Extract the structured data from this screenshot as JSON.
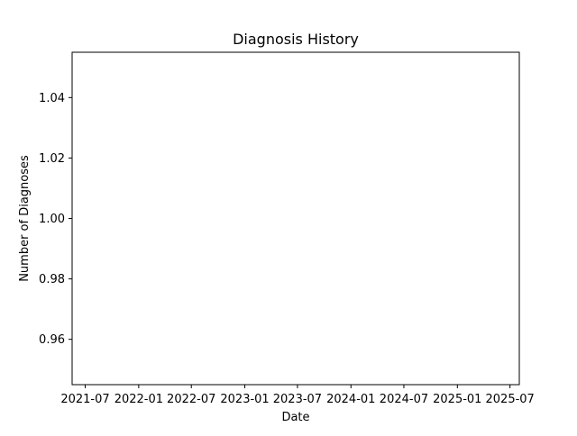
{
  "chart_data": {
    "type": "line",
    "title": "Diagnosis History",
    "xlabel": "Date",
    "ylabel": "Number of Diagnoses",
    "x_tick_labels": [
      "2021-07",
      "2022-01",
      "2022-07",
      "2023-01",
      "2023-07",
      "2024-01",
      "2024-07",
      "2025-01",
      "2025-07"
    ],
    "y_tick_labels": [
      "0.96",
      "0.98",
      "1.00",
      "1.02",
      "1.04"
    ],
    "y_ticks": [
      0.96,
      0.98,
      1.0,
      1.02,
      1.04
    ],
    "ylim": [
      0.945,
      1.055
    ],
    "xlim": [
      "2021-05-17",
      "2025-08-02"
    ],
    "series": [],
    "grid": false
  }
}
